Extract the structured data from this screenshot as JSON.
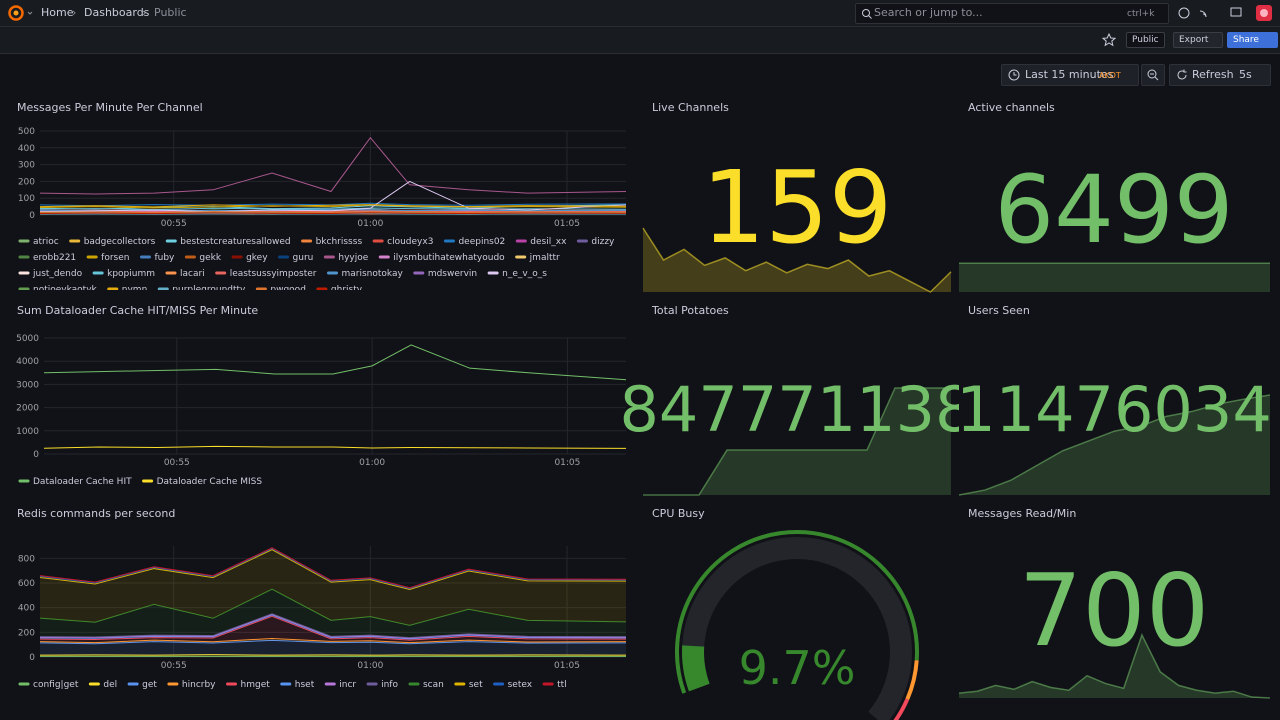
{
  "header": {
    "breadcrumbs": [
      "Home",
      "Dashboards",
      "Public"
    ],
    "search": "Search or jump to...",
    "shortcut": "ctrl+k"
  },
  "toolbar": {
    "badge": "Public",
    "export": "Export",
    "share": "Share"
  },
  "timepicker": {
    "range": "Last 15 minutes",
    "zone": "AKDT",
    "refresh": "Refresh",
    "interval": "5s"
  },
  "chart_data": [
    {
      "type": "line",
      "title": "Messages Per Minute Per Channel",
      "x": [
        51.6,
        53,
        54.5,
        56,
        57.5,
        59,
        60,
        61,
        62.5,
        64,
        66.5
      ],
      "xlim": [
        51.6,
        66.5
      ],
      "xticks": [
        {
          "value": 55,
          "label": "00:55"
        },
        {
          "value": 60,
          "label": "01:00"
        },
        {
          "value": 65,
          "label": "01:05"
        }
      ],
      "ylim": [
        0,
        500
      ],
      "yticks": [
        0,
        100,
        200,
        300,
        400,
        500
      ],
      "grid": true,
      "series": [
        {
          "name": "atrioc",
          "color": "#7eb26d",
          "values": [
            20,
            25,
            18,
            30,
            22,
            28,
            35,
            25,
            20,
            30,
            22
          ]
        },
        {
          "name": "badgecollectors",
          "color": "#eab839",
          "values": [
            10,
            12,
            8,
            15,
            10,
            12,
            14,
            10,
            12,
            9,
            11
          ]
        },
        {
          "name": "bestestcreaturesallowed",
          "color": "#6ed0e0",
          "values": [
            40,
            35,
            45,
            50,
            38,
            42,
            55,
            48,
            40,
            52,
            60
          ]
        },
        {
          "name": "bkchrissss",
          "color": "#ef843c",
          "values": [
            5,
            8,
            6,
            7,
            5,
            9,
            6,
            8,
            5,
            7,
            6
          ]
        },
        {
          "name": "cloudeyx3",
          "color": "#e24d42",
          "values": [
            15,
            18,
            12,
            20,
            16,
            14,
            22,
            18,
            15,
            17,
            14
          ]
        },
        {
          "name": "deepins02",
          "color": "#1f78c1",
          "values": [
            60,
            55,
            62,
            58,
            65,
            60,
            70,
            62,
            58,
            64,
            66
          ]
        },
        {
          "name": "desil_xx",
          "color": "#ba43a9",
          "values": [
            8,
            10,
            7,
            9,
            11,
            8,
            10,
            9,
            8,
            10,
            9
          ]
        },
        {
          "name": "dizzy",
          "color": "#705da0",
          "values": [
            25,
            30,
            28,
            22,
            26,
            30,
            32,
            28,
            26,
            24,
            28
          ]
        },
        {
          "name": "erobb221",
          "color": "#508642",
          "values": [
            12,
            14,
            10,
            16,
            12,
            14,
            18,
            12,
            10,
            13,
            12
          ]
        },
        {
          "name": "forsen",
          "color": "#cca300",
          "values": [
            45,
            50,
            42,
            48,
            55,
            50,
            60,
            52,
            48,
            50,
            46
          ]
        },
        {
          "name": "fuby",
          "color": "#447ebc",
          "values": [
            6,
            8,
            5,
            7,
            9,
            6,
            8,
            7,
            6,
            8,
            7
          ]
        },
        {
          "name": "gekk",
          "color": "#c15c17",
          "values": [
            18,
            20,
            16,
            22,
            18,
            20,
            24,
            20,
            18,
            21,
            19
          ]
        },
        {
          "name": "gkey",
          "color": "#890f02",
          "values": [
            30,
            28,
            32,
            26,
            30,
            34,
            28,
            30,
            32,
            28,
            30
          ]
        },
        {
          "name": "guru",
          "color": "#0a437c",
          "values": [
            10,
            12,
            9,
            11,
            13,
            10,
            12,
            11,
            10,
            12,
            11
          ]
        },
        {
          "name": "hyyjoe",
          "color": "#a8578d",
          "values": [
            130,
            125,
            130,
            150,
            250,
            140,
            460,
            180,
            150,
            130,
            140
          ]
        },
        {
          "name": "ilysmbutihatewhatyoudo",
          "color": "#d683ce",
          "values": [
            22,
            20,
            24,
            18,
            22,
            26,
            20,
            22,
            24,
            20,
            22
          ]
        },
        {
          "name": "jmalttr",
          "color": "#f2c96d",
          "values": [
            15,
            18,
            14,
            16,
            20,
            15,
            18,
            16,
            14,
            17,
            15
          ]
        },
        {
          "name": "just_dendo",
          "color": "#fce2de",
          "values": [
            8,
            9,
            7,
            10,
            8,
            9,
            11,
            8,
            7,
            9,
            8
          ]
        },
        {
          "name": "kpopiumm",
          "color": "#65c5db",
          "values": [
            35,
            38,
            32,
            40,
            36,
            34,
            42,
            38,
            35,
            37,
            34
          ]
        },
        {
          "name": "lacari",
          "color": "#f9934e",
          "values": [
            12,
            10,
            14,
            12,
            10,
            13,
            15,
            12,
            11,
            13,
            12
          ]
        },
        {
          "name": "leastsussyimposter",
          "color": "#ea6460",
          "values": [
            20,
            22,
            18,
            24,
            20,
            22,
            26,
            22,
            20,
            23,
            21
          ]
        },
        {
          "name": "marisnotokay",
          "color": "#5195ce",
          "values": [
            28,
            25,
            30,
            26,
            28,
            32,
            30,
            27,
            29,
            26,
            28
          ]
        },
        {
          "name": "mdswervin",
          "color": "#9467bd",
          "values": [
            10,
            12,
            9,
            14,
            11,
            10,
            13,
            12,
            10,
            11,
            12
          ]
        },
        {
          "name": "n_e_v_o_s",
          "color": "#dcc8f0",
          "values": [
            20,
            25,
            30,
            20,
            30,
            25,
            40,
            200,
            40,
            30,
            60
          ]
        },
        {
          "name": "notjoeykaotyk",
          "color": "#629e51",
          "values": [
            14,
            16,
            12,
            18,
            15,
            14,
            17,
            15,
            13,
            16,
            14
          ]
        },
        {
          "name": "nymn",
          "color": "#e5ac0e",
          "values": [
            50,
            55,
            48,
            60,
            52,
            58,
            62,
            55,
            50,
            56,
            52
          ]
        },
        {
          "name": "purplegroundttv",
          "color": "#64b0c8",
          "values": [
            6,
            7,
            5,
            8,
            6,
            7,
            9,
            6,
            5,
            7,
            6
          ]
        },
        {
          "name": "pwgood",
          "color": "#e0752d",
          "values": [
            16,
            18,
            14,
            20,
            17,
            15,
            19,
            17,
            15,
            18,
            16
          ]
        },
        {
          "name": "qhristv",
          "color": "#bf1b00",
          "values": [
            9,
            11,
            8,
            12,
            10,
            9,
            13,
            10,
            9,
            11,
            10
          ]
        }
      ]
    },
    {
      "type": "stat",
      "title": "Live Channels",
      "value": 159,
      "color": "#fade2a",
      "values": [
        200,
        170,
        180,
        165,
        172,
        160,
        168,
        158,
        166,
        162,
        170,
        155,
        160,
        150,
        140,
        159
      ]
    },
    {
      "type": "stat",
      "title": "Active channels",
      "value": 6499,
      "color": "#73bf69",
      "values": [
        6499,
        6499,
        6499,
        6499,
        6499,
        6499,
        6499,
        6499,
        6499,
        6499
      ]
    },
    {
      "type": "line",
      "title": "Sum Dataloader Cache HIT/MISS Per Minute",
      "x": [
        51.6,
        53,
        54.5,
        56,
        57.5,
        59,
        60,
        61,
        62.5,
        64,
        66.5
      ],
      "xlim": [
        51.6,
        66.5
      ],
      "xticks": [
        {
          "value": 55,
          "label": "00:55"
        },
        {
          "value": 60,
          "label": "01:00"
        },
        {
          "value": 65,
          "label": "01:05"
        }
      ],
      "ylim": [
        0,
        5000
      ],
      "yticks": [
        0,
        1000,
        2000,
        3000,
        4000,
        5000
      ],
      "grid": true,
      "series": [
        {
          "name": "Dataloader Cache HIT",
          "color": "#73bf69",
          "values": [
            3500,
            3550,
            3600,
            3650,
            3450,
            3450,
            3800,
            4700,
            3700,
            3500,
            3200
          ]
        },
        {
          "name": "Dataloader Cache MISS",
          "color": "#fade2a",
          "values": [
            250,
            300,
            280,
            330,
            300,
            300,
            260,
            280,
            270,
            260,
            240
          ]
        }
      ]
    },
    {
      "type": "stat",
      "title": "Total Potatoes",
      "value": 847771138,
      "color": "#73bf69",
      "values": [
        847770600,
        847770600,
        847770600,
        847770826,
        847770826,
        847770826,
        847770826,
        847770826,
        847770826,
        847771138,
        847771138,
        847771138
      ]
    },
    {
      "type": "stat",
      "title": "Users Seen",
      "value": 11476034,
      "color": "#73bf69",
      "values": [
        11474000,
        11474100,
        11474300,
        11474600,
        11474900,
        11475100,
        11475300,
        11475400,
        11475600,
        11475700,
        11475850,
        11475950,
        11476034
      ]
    },
    {
      "type": "area",
      "title": "Redis commands per second",
      "x": [
        51.6,
        53,
        54.5,
        56,
        57.5,
        59,
        60,
        61,
        62.5,
        64,
        66.5
      ],
      "xlim": [
        51.6,
        66.5
      ],
      "xticks": [
        {
          "value": 55,
          "label": "00:55"
        },
        {
          "value": 60,
          "label": "01:00"
        },
        {
          "value": 65,
          "label": "01:05"
        }
      ],
      "ylim": [
        0,
        900
      ],
      "yticks": [
        0,
        200,
        400,
        600,
        800
      ],
      "grid": true,
      "series": [
        {
          "name": "config|get",
          "color": "#73bf69",
          "values": [
            5,
            5,
            5,
            5,
            5,
            5,
            5,
            5,
            5,
            5,
            5
          ]
        },
        {
          "name": "del",
          "color": "#fade2a",
          "values": [
            10,
            12,
            10,
            14,
            10,
            12,
            10,
            12,
            10,
            12,
            10
          ]
        },
        {
          "name": "get",
          "color": "#5794f2",
          "values": [
            100,
            90,
            110,
            95,
            120,
            100,
            105,
            90,
            110,
            95,
            100
          ]
        },
        {
          "name": "hincrby",
          "color": "#ff9830",
          "values": [
            10,
            10,
            12,
            10,
            15,
            10,
            12,
            10,
            12,
            10,
            10
          ]
        },
        {
          "name": "hmget",
          "color": "#f2495c",
          "values": [
            20,
            25,
            20,
            30,
            180,
            20,
            25,
            20,
            30,
            25,
            20
          ]
        },
        {
          "name": "hset",
          "color": "#5794f2",
          "values": [
            10,
            10,
            10,
            10,
            10,
            10,
            10,
            10,
            10,
            10,
            10
          ]
        },
        {
          "name": "incr",
          "color": "#b877d9",
          "values": [
            5,
            5,
            5,
            5,
            5,
            5,
            5,
            5,
            5,
            5,
            5
          ]
        },
        {
          "name": "info",
          "color": "#705da0",
          "values": [
            5,
            5,
            5,
            5,
            5,
            5,
            5,
            5,
            5,
            5,
            5
          ]
        },
        {
          "name": "scan",
          "color": "#37872d",
          "values": [
            150,
            120,
            250,
            140,
            200,
            130,
            150,
            100,
            200,
            130,
            120
          ]
        },
        {
          "name": "set",
          "color": "#e0b400",
          "values": [
            330,
            310,
            290,
            330,
            320,
            310,
            300,
            290,
            310,
            320,
            330
          ]
        },
        {
          "name": "setex",
          "color": "#1f60c4",
          "values": [
            10,
            10,
            10,
            10,
            10,
            10,
            10,
            10,
            10,
            10,
            10
          ]
        },
        {
          "name": "ttl",
          "color": "#c4162a",
          "values": [
            5,
            5,
            5,
            5,
            5,
            5,
            5,
            5,
            5,
            5,
            5
          ]
        }
      ]
    },
    {
      "type": "gauge",
      "title": "CPU Busy",
      "value": 9.7,
      "value_label": "9.7%",
      "ylim": [
        0,
        100
      ],
      "color": "#37872d",
      "thresholds": [
        {
          "value": 0,
          "color": "#37872d"
        },
        {
          "value": 85,
          "color": "#ff9830"
        },
        {
          "value": 93,
          "color": "#f2495c"
        }
      ]
    },
    {
      "type": "stat",
      "title": "Messages Read/Min",
      "value": 700,
      "color": "#73bf69",
      "values": [
        300,
        320,
        380,
        340,
        420,
        360,
        330,
        480,
        400,
        350,
        900,
        520,
        380,
        330,
        300,
        320,
        260,
        250
      ]
    }
  ]
}
